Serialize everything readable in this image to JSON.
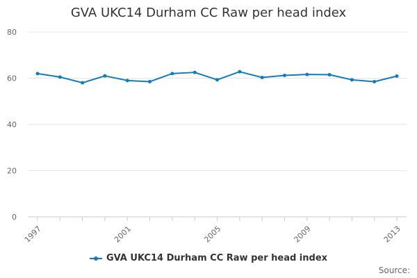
{
  "chart_data": {
    "type": "line",
    "title": "GVA UKC14 Durham CC Raw per head index",
    "xlabel": "",
    "ylabel": "",
    "x": [
      1997,
      1998,
      1999,
      2000,
      2001,
      2002,
      2003,
      2004,
      2005,
      2006,
      2007,
      2008,
      2009,
      2010,
      2011,
      2012,
      2013
    ],
    "x_tick_labels": [
      "1997",
      "2001",
      "2005",
      "2009",
      "2013"
    ],
    "x_ticks": [
      1997,
      2001,
      2005,
      2009,
      2013
    ],
    "y_ticks": [
      0,
      20,
      40,
      60,
      80
    ],
    "ylim": [
      0,
      80
    ],
    "grid": true,
    "legend_position": "bottom",
    "series": [
      {
        "name": "GVA UKC14 Durham CC Raw per head index",
        "color": "#0f7cbf",
        "values": [
          62.0,
          60.5,
          58.0,
          61.0,
          59.0,
          58.5,
          62.0,
          62.5,
          59.3,
          62.8,
          60.3,
          61.2,
          61.6,
          61.5,
          59.3,
          58.5,
          60.9
        ]
      }
    ]
  },
  "source_label": "Source:"
}
